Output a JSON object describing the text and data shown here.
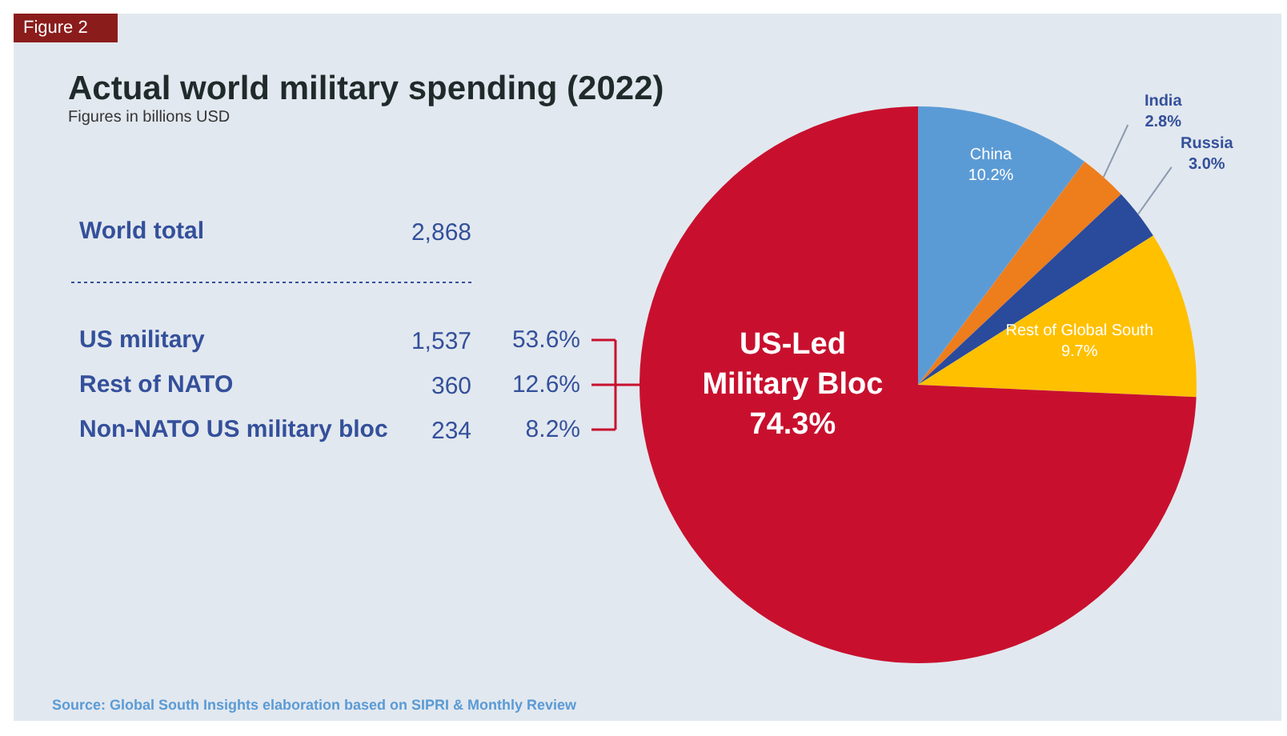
{
  "chart_data": {
    "type": "pie",
    "title": "Actual world military spending (2022)",
    "subtitle": "Figures in billions USD",
    "categories": [
      "China",
      "India",
      "Russia",
      "Rest of Global South",
      "US-Led Military Bloc"
    ],
    "values": [
      10.2,
      2.8,
      3.0,
      9.7,
      74.3
    ],
    "colors": [
      "#5b9bd5",
      "#ee7d1c",
      "#2a4a9c",
      "#ffc000",
      "#c8102e"
    ],
    "value_labels": [
      "10.2%",
      "2.8%",
      "3.0%",
      "9.7%",
      "74.3%"
    ],
    "annotations": [
      "Figure 2",
      "World total",
      "2,868",
      "US military",
      "1,537",
      "53.6%",
      "Rest of NATO",
      "360",
      "12.6%",
      "Non-NATO US military bloc",
      "234",
      "8.2%",
      "Source: Global South Insights elaboration based on SIPRI & Monthly Review"
    ]
  }
}
